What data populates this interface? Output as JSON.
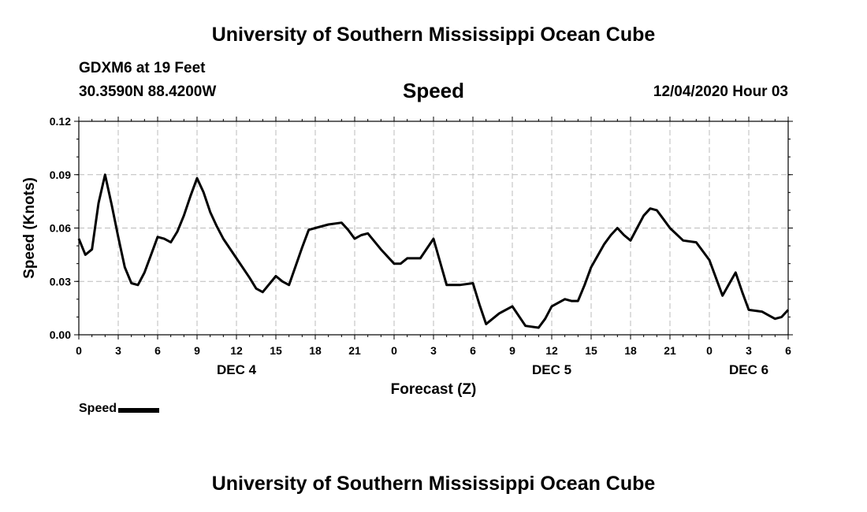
{
  "header": {
    "title": "University of Southern Mississippi Ocean Cube",
    "station": "GDXM6 at 19 Feet",
    "coords": "30.3590N 88.4200W",
    "chart_title": "Speed",
    "datetime": "12/04/2020 Hour 03"
  },
  "footer": {
    "title": "University of Southern Mississippi Ocean Cube"
  },
  "legend": {
    "label": "Speed"
  },
  "chart_data": {
    "type": "line",
    "title": "Speed",
    "xlabel": "Forecast (Z)",
    "ylabel": "Speed (Knots)",
    "xlim": [
      0,
      54
    ],
    "ylim": [
      0,
      0.12
    ],
    "yticks": [
      "0.00",
      "0.03",
      "0.06",
      "0.09",
      "0.12"
    ],
    "xticks": [
      "0",
      "3",
      "6",
      "9",
      "12",
      "15",
      "18",
      "21",
      "0",
      "3",
      "6",
      "9",
      "12",
      "15",
      "18",
      "21",
      "0",
      "3",
      "6"
    ],
    "day_labels": [
      {
        "label": "DEC 4",
        "at": 12
      },
      {
        "label": "DEC 5",
        "at": 36
      },
      {
        "label": "DEC 6",
        "at": 51
      }
    ],
    "grid": true,
    "legend": "bottom-left",
    "series": [
      {
        "name": "Speed",
        "color": "#000000",
        "x": [
          0,
          0.5,
          1,
          1.5,
          2,
          2.5,
          3,
          3.5,
          4,
          4.5,
          5,
          5.5,
          6,
          6.5,
          7,
          7.5,
          8,
          8.5,
          9,
          9.5,
          10,
          10.5,
          11,
          12,
          13,
          13.5,
          14,
          15,
          15.5,
          16,
          17,
          17.5,
          18,
          19,
          20,
          20.5,
          21,
          21.5,
          22,
          23,
          24,
          24.5,
          25,
          26,
          27,
          27.5,
          28,
          28.5,
          29,
          30,
          30.5,
          31,
          32,
          33,
          34,
          35,
          35.5,
          36,
          37,
          37.5,
          38,
          38.5,
          39,
          40,
          40.5,
          41,
          41.5,
          42,
          42.5,
          43,
          43.5,
          44,
          44.5,
          45,
          46,
          47,
          48,
          49,
          50,
          50.5,
          51,
          52,
          52.5,
          53,
          53.5,
          54
        ],
        "values": [
          0.054,
          0.045,
          0.048,
          0.074,
          0.09,
          0.073,
          0.055,
          0.038,
          0.029,
          0.028,
          0.035,
          0.045,
          0.055,
          0.054,
          0.052,
          0.058,
          0.067,
          0.078,
          0.088,
          0.08,
          0.069,
          0.061,
          0.054,
          0.043,
          0.032,
          0.026,
          0.024,
          0.033,
          0.03,
          0.028,
          0.049,
          0.059,
          0.06,
          0.062,
          0.063,
          0.059,
          0.054,
          0.056,
          0.057,
          0.048,
          0.04,
          0.04,
          0.043,
          0.043,
          0.054,
          0.041,
          0.028,
          0.028,
          0.028,
          0.029,
          0.017,
          0.006,
          0.012,
          0.016,
          0.005,
          0.004,
          0.009,
          0.016,
          0.02,
          0.019,
          0.019,
          0.028,
          0.038,
          0.051,
          0.056,
          0.06,
          0.056,
          0.053,
          0.06,
          0.067,
          0.071,
          0.07,
          0.065,
          0.06,
          0.053,
          0.052,
          0.042,
          0.022,
          0.035,
          0.024,
          0.014,
          0.013,
          0.011,
          0.009,
          0.01,
          0.014
        ]
      }
    ]
  }
}
